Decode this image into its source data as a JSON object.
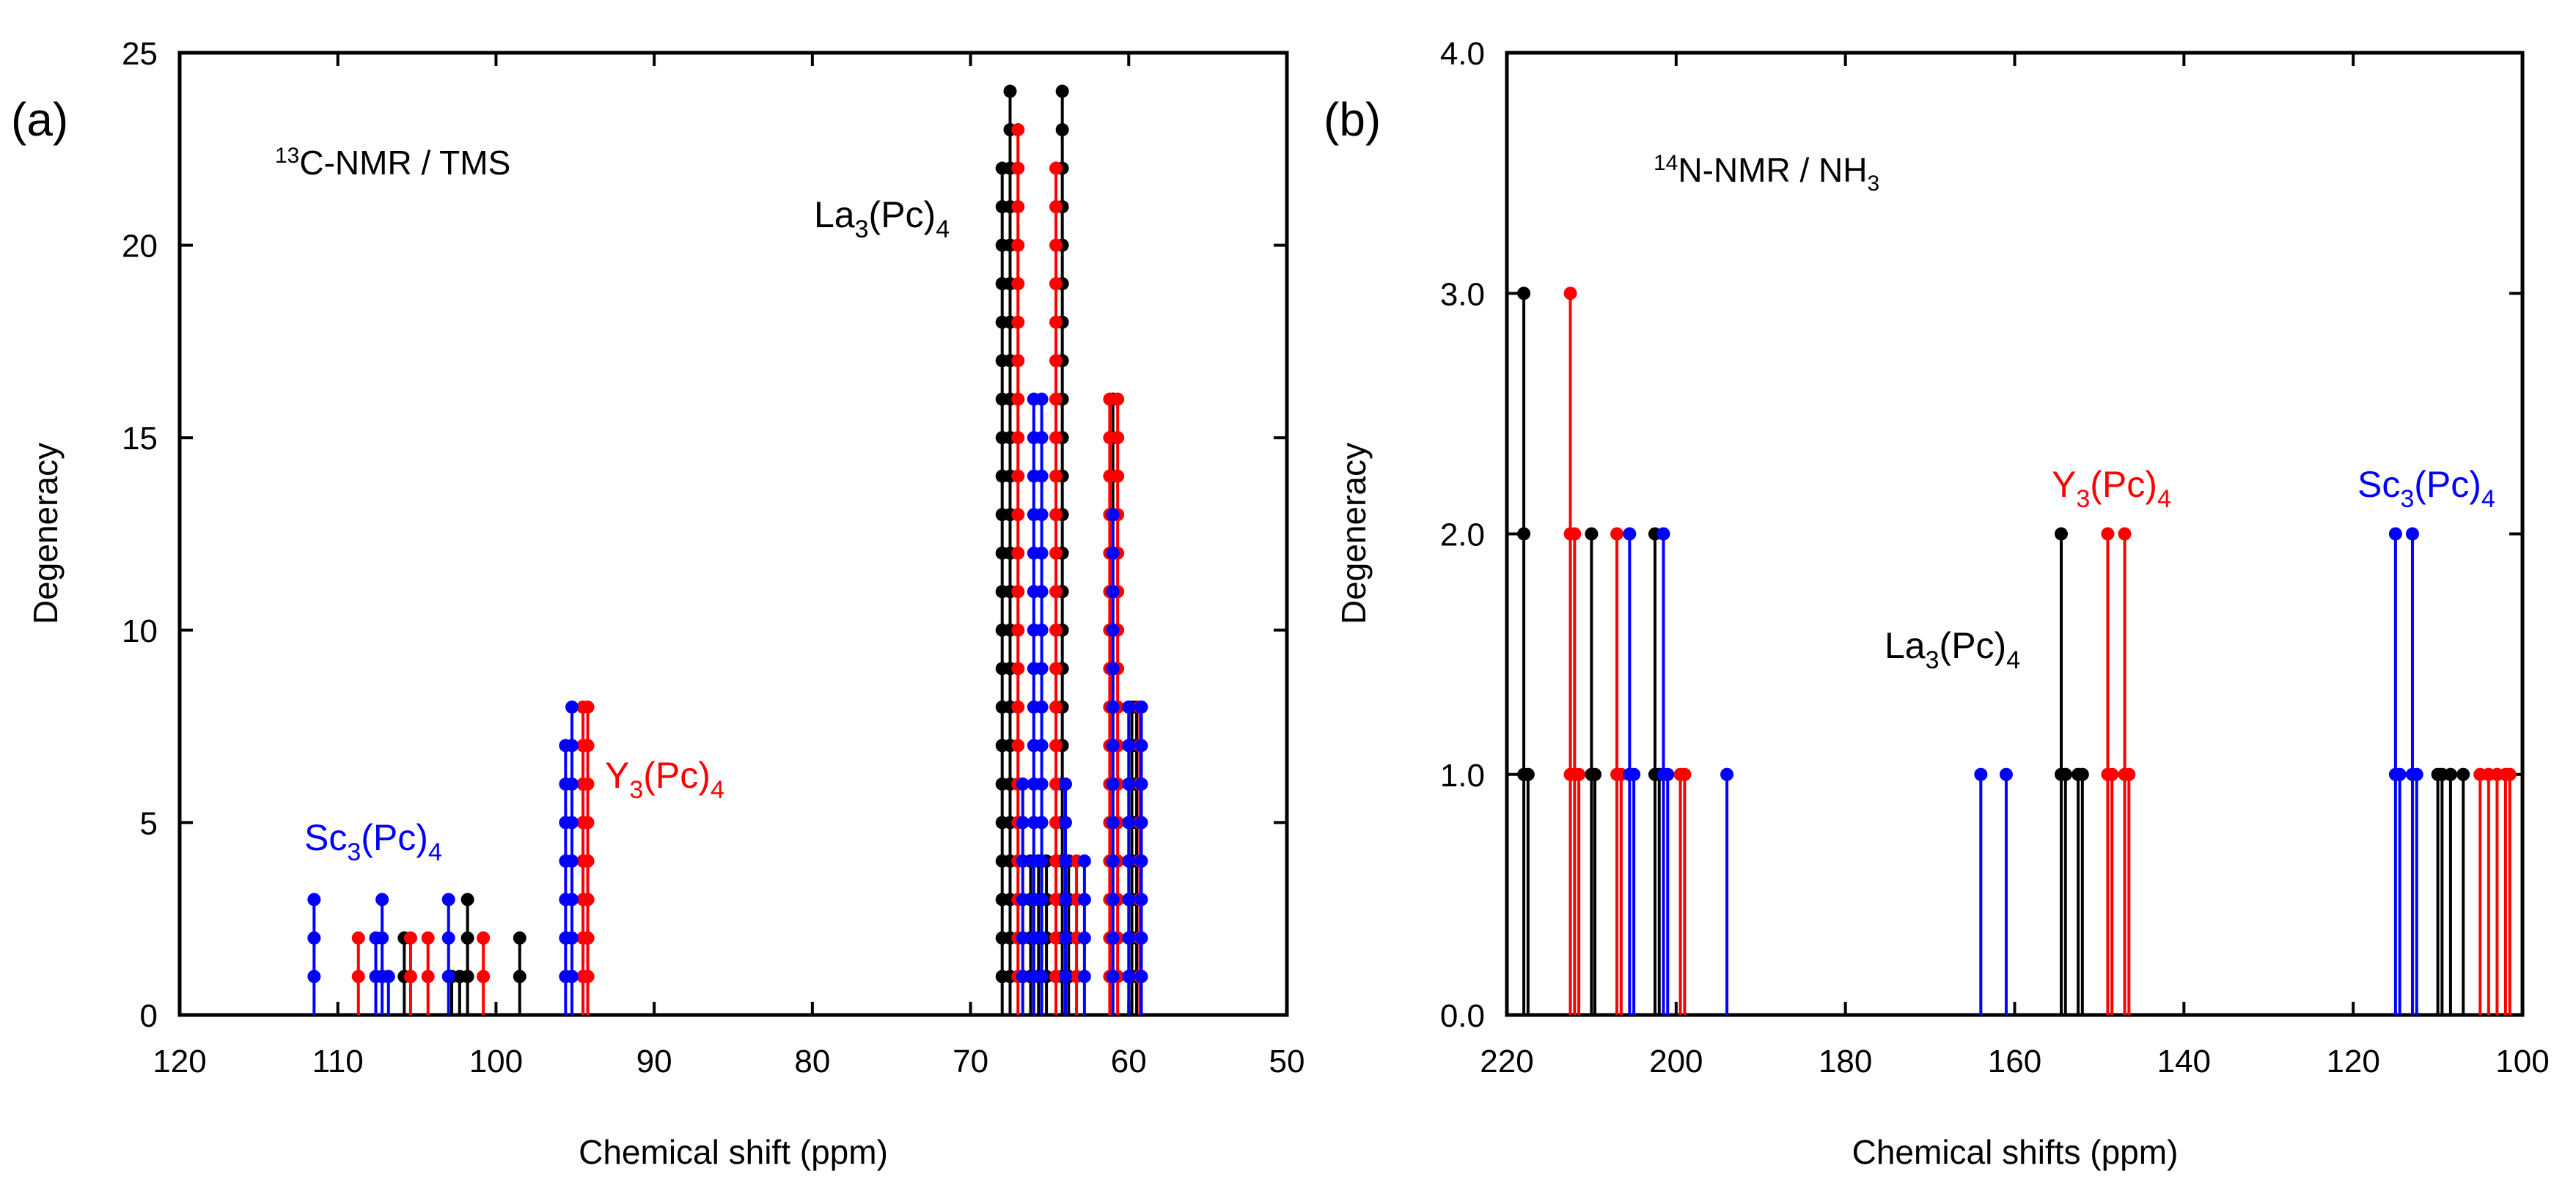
{
  "chart_data": [
    {
      "panel_label": "(a)",
      "type": "stem",
      "title": "13C-NMR / TMS",
      "title_parts": {
        "sup": "13",
        "main": "C-NMR / TMS"
      },
      "xlabel": "Chemical shift (ppm)",
      "ylabel": "Degeneracy",
      "xlim": [
        120,
        50
      ],
      "ylim": [
        0,
        25
      ],
      "xticks": [
        "120",
        "110",
        "100",
        "90",
        "80",
        "70",
        "60",
        "50"
      ],
      "yticks": [
        "0",
        "5",
        "10",
        "15",
        "20",
        "25"
      ],
      "colors": {
        "La3(Pc)4": "#000000",
        "Y3(Pc)4": "#ff0000",
        "Sc3(Pc)4": "#0000ff"
      },
      "series": [
        {
          "name": "La3(Pc)4",
          "color": "#000000",
          "points": [
            [
              105.8,
              2
            ],
            [
              102.8,
              1
            ],
            [
              102.3,
              1
            ],
            [
              101.8,
              3
            ],
            [
              98.5,
              2
            ],
            [
              94.2,
              4
            ],
            [
              68.0,
              22
            ],
            [
              67.5,
              24
            ],
            [
              66.2,
              4
            ],
            [
              65.7,
              4
            ],
            [
              65.2,
              4
            ],
            [
              64.2,
              24
            ],
            [
              63.8,
              4
            ],
            [
              61.0,
              16
            ],
            [
              59.8,
              8
            ],
            [
              59.5,
              8
            ]
          ]
        },
        {
          "name": "Y3(Pc)4",
          "color": "#ff0000",
          "points": [
            [
              108.7,
              2
            ],
            [
              105.4,
              2
            ],
            [
              104.3,
              2
            ],
            [
              100.8,
              2
            ],
            [
              94.5,
              8
            ],
            [
              94.2,
              8
            ],
            [
              67.0,
              23
            ],
            [
              64.6,
              22
            ],
            [
              63.3,
              4
            ],
            [
              61.2,
              16
            ],
            [
              60.7,
              16
            ],
            [
              59.3,
              8
            ]
          ]
        },
        {
          "name": "Sc3(Pc)4",
          "color": "#0000ff",
          "points": [
            [
              111.5,
              3
            ],
            [
              107.6,
              2
            ],
            [
              107.2,
              3
            ],
            [
              106.8,
              1
            ],
            [
              103.0,
              3
            ],
            [
              95.6,
              7
            ],
            [
              95.2,
              8
            ],
            [
              66.0,
              16
            ],
            [
              65.5,
              16
            ],
            [
              66.7,
              6
            ],
            [
              64.0,
              6
            ],
            [
              62.8,
              4
            ],
            [
              61.0,
              13
            ],
            [
              60.0,
              8
            ],
            [
              59.2,
              8
            ]
          ]
        }
      ],
      "annotations": [
        {
          "label": "Sc3(Pc)4",
          "base": "Sc",
          "sub1": "3",
          "mid": "(Pc)",
          "sub2": "4",
          "color": "#0000ff"
        },
        {
          "label": "Y3(Pc)4",
          "base": "Y",
          "sub1": "3",
          "mid": "(Pc)",
          "sub2": "4",
          "color": "#ff0000"
        },
        {
          "label": "La3(Pc)4",
          "base": "La",
          "sub1": "3",
          "mid": "(Pc)",
          "sub2": "4",
          "color": "#000000"
        }
      ]
    },
    {
      "panel_label": "(b)",
      "type": "stem",
      "title": "14N-NMR / NH3",
      "title_parts": {
        "sup": "14",
        "main": "N-NMR / NH",
        "sub": "3"
      },
      "xlabel": "Chemical shifts (ppm)",
      "ylabel": "Degeneracy",
      "xlim": [
        220,
        100
      ],
      "ylim": [
        0,
        4
      ],
      "xticks": [
        "220",
        "200",
        "180",
        "160",
        "140",
        "120",
        "100"
      ],
      "yticks": [
        "0.0",
        "1.0",
        "2.0",
        "3.0",
        "4.0"
      ],
      "colors": {
        "La3(Pc)4": "#000000",
        "Y3(Pc)4": "#ff0000",
        "Sc3(Pc)4": "#0000ff"
      },
      "series": [
        {
          "name": "La3(Pc)4",
          "color": "#000000",
          "points": [
            [
              218.0,
              3
            ],
            [
              217.5,
              1
            ],
            [
              210.0,
              2
            ],
            [
              209.6,
              1
            ],
            [
              202.5,
              2
            ],
            [
              202.0,
              1
            ],
            [
              154.5,
              2
            ],
            [
              154.0,
              1
            ],
            [
              152.5,
              1
            ],
            [
              152.0,
              1
            ],
            [
              110.0,
              1
            ],
            [
              109.5,
              1
            ],
            [
              108.5,
              1
            ],
            [
              107.0,
              1
            ]
          ]
        },
        {
          "name": "Y3(Pc)4",
          "color": "#ff0000",
          "points": [
            [
              212.5,
              3
            ],
            [
              212.0,
              2
            ],
            [
              211.5,
              1
            ],
            [
              207.0,
              2
            ],
            [
              206.5,
              1
            ],
            [
              199.5,
              1
            ],
            [
              199.0,
              1
            ],
            [
              149.0,
              2
            ],
            [
              148.5,
              1
            ],
            [
              147.0,
              2
            ],
            [
              146.5,
              1
            ],
            [
              105.0,
              1
            ],
            [
              104.0,
              1
            ],
            [
              103.0,
              1
            ],
            [
              102.0,
              1
            ],
            [
              101.5,
              1
            ]
          ]
        },
        {
          "name": "Sc3(Pc)4",
          "color": "#0000ff",
          "points": [
            [
              205.5,
              2
            ],
            [
              205.0,
              1
            ],
            [
              201.5,
              2
            ],
            [
              201.0,
              1
            ],
            [
              194.0,
              1
            ],
            [
              164.0,
              1
            ],
            [
              161.0,
              1
            ],
            [
              115.0,
              2
            ],
            [
              114.5,
              1
            ],
            [
              113.0,
              2
            ],
            [
              112.5,
              1
            ]
          ]
        }
      ],
      "annotations": [
        {
          "label": "Y3(Pc)4",
          "base": "Y",
          "sub1": "3",
          "mid": "(Pc)",
          "sub2": "4",
          "color": "#ff0000"
        },
        {
          "label": "Sc3(Pc)4",
          "base": "Sc",
          "sub1": "3",
          "mid": "(Pc)",
          "sub2": "4",
          "color": "#0000ff"
        },
        {
          "label": "La3(Pc)4",
          "base": "La",
          "sub1": "3",
          "mid": "(Pc)",
          "sub2": "4",
          "color": "#000000"
        }
      ]
    }
  ]
}
